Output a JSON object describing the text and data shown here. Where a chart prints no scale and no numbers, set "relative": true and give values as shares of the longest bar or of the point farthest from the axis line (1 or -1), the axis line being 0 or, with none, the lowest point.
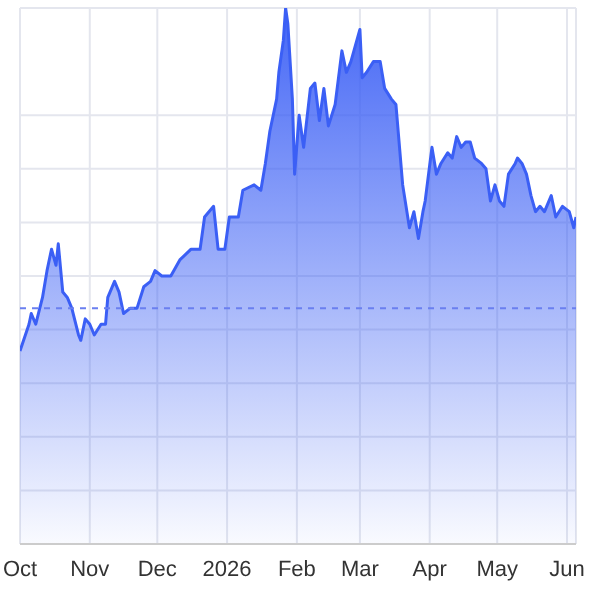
{
  "chart_data": {
    "type": "area",
    "relative": true,
    "grid": true,
    "color": "#3b5ff5",
    "x": [
      "2025-10-01",
      "2025-10-05",
      "2025-10-06",
      "2025-10-08",
      "2025-10-11",
      "2025-10-13",
      "2025-10-15",
      "2025-10-17",
      "2025-10-18",
      "2025-10-20",
      "2025-10-22",
      "2025-10-24",
      "2025-10-27",
      "2025-10-28",
      "2025-10-30",
      "2025-11-01",
      "2025-11-03",
      "2025-11-06",
      "2025-11-08",
      "2025-11-09",
      "2025-11-12",
      "2025-11-14",
      "2025-11-16",
      "2025-11-19",
      "2025-11-22",
      "2025-11-25",
      "2025-11-28",
      "2025-11-30",
      "2025-12-03",
      "2025-12-07",
      "2025-12-11",
      "2025-12-16",
      "2025-12-20",
      "2025-12-22",
      "2025-12-26",
      "2025-12-28",
      "2025-12-31",
      "2026-01-02",
      "2026-01-06",
      "2026-01-08",
      "2026-01-13",
      "2026-01-16",
      "2026-01-18",
      "2026-01-20",
      "2026-01-23",
      "2026-01-24",
      "2026-01-26",
      "2026-01-27",
      "2026-01-28",
      "2026-01-30",
      "2026-01-31",
      "2026-02-02",
      "2026-02-04",
      "2026-02-07",
      "2026-02-09",
      "2026-02-11",
      "2026-02-13",
      "2026-02-15",
      "2026-02-18",
      "2026-02-21",
      "2026-02-23",
      "2026-02-25",
      "2026-03-01",
      "2026-03-02",
      "2026-03-04",
      "2026-03-07",
      "2026-03-10",
      "2026-03-12",
      "2026-03-15",
      "2026-03-17",
      "2026-03-20",
      "2026-03-23",
      "2026-03-25",
      "2026-03-27",
      "2026-03-29",
      "2026-03-30",
      "2026-04-02",
      "2026-04-04",
      "2026-04-06",
      "2026-04-09",
      "2026-04-11",
      "2026-04-13",
      "2026-04-15",
      "2026-04-17",
      "2026-04-19",
      "2026-04-21",
      "2026-04-24",
      "2026-04-26",
      "2026-04-28",
      "2026-04-30",
      "2026-05-02",
      "2026-05-04",
      "2026-05-06",
      "2026-05-09",
      "2026-05-10",
      "2026-05-12",
      "2026-05-14",
      "2026-05-16",
      "2026-05-18",
      "2026-05-20",
      "2026-05-22",
      "2026-05-25",
      "2026-05-27",
      "2026-05-30",
      "2026-06-02",
      "2026-06-04",
      "2026-06-05"
    ],
    "values": [
      0.36,
      0.41,
      0.43,
      0.41,
      0.46,
      0.51,
      0.55,
      0.52,
      0.56,
      0.47,
      0.46,
      0.44,
      0.39,
      0.38,
      0.42,
      0.41,
      0.39,
      0.41,
      0.41,
      0.46,
      0.49,
      0.47,
      0.43,
      0.44,
      0.44,
      0.48,
      0.49,
      0.51,
      0.5,
      0.5,
      0.53,
      0.55,
      0.55,
      0.61,
      0.63,
      0.55,
      0.55,
      0.61,
      0.61,
      0.66,
      0.67,
      0.66,
      0.71,
      0.77,
      0.83,
      0.88,
      0.94,
      1.0,
      0.97,
      0.83,
      0.69,
      0.8,
      0.74,
      0.85,
      0.86,
      0.79,
      0.85,
      0.78,
      0.82,
      0.92,
      0.88,
      0.9,
      0.96,
      0.87,
      0.88,
      0.9,
      0.9,
      0.85,
      0.83,
      0.82,
      0.67,
      0.59,
      0.62,
      0.57,
      0.62,
      0.64,
      0.74,
      0.69,
      0.71,
      0.73,
      0.72,
      0.76,
      0.74,
      0.75,
      0.75,
      0.72,
      0.71,
      0.7,
      0.64,
      0.67,
      0.64,
      0.63,
      0.69,
      0.71,
      0.72,
      0.71,
      0.69,
      0.65,
      0.62,
      0.63,
      0.62,
      0.65,
      0.61,
      0.63,
      0.62,
      0.59,
      0.61
    ],
    "xlim": [
      "2025-10-01",
      "2026-06-05"
    ],
    "xticks": [
      {
        "value": "2025-10-01",
        "label": "Oct"
      },
      {
        "value": "2025-11-01",
        "label": "Nov"
      },
      {
        "value": "2025-12-01",
        "label": "Dec"
      },
      {
        "value": "2026-01-01",
        "label": "2026"
      },
      {
        "value": "2026-02-01",
        "label": "Feb"
      },
      {
        "value": "2026-03-01",
        "label": "Mar"
      },
      {
        "value": "2026-04-01",
        "label": "Apr"
      },
      {
        "value": "2026-05-01",
        "label": "May"
      },
      {
        "value": "2026-06-01",
        "label": "Jun"
      }
    ],
    "ref_lines": [
      {
        "axis": "y",
        "value": 0.44,
        "color": "#6a7ff0",
        "line_style": "dashed"
      }
    ]
  }
}
